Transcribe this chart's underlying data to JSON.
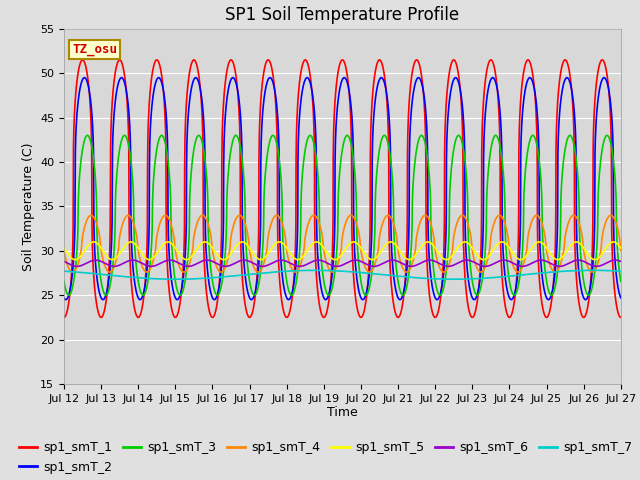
{
  "title": "SP1 Soil Temperature Profile",
  "xlabel": "Time",
  "ylabel": "Soil Temperature (C)",
  "ylim": [
    15,
    55
  ],
  "x_tick_labels": [
    "Jul 12",
    "Jul 13",
    "Jul 14",
    "Jul 15",
    "Jul 16",
    "Jul 17",
    "Jul 18",
    "Jul 19",
    "Jul 20",
    "Jul 21",
    "Jul 22",
    "Jul 23",
    "Jul 24",
    "Jul 25",
    "Jul 26",
    "Jul 27"
  ],
  "series": [
    {
      "name": "sp1_smT_1",
      "color": "#FF0000",
      "mean": 37.0,
      "amplitude": 14.5,
      "phase_shift": 0.25,
      "period": 1.0,
      "sharpness": 3.0
    },
    {
      "name": "sp1_smT_2",
      "color": "#0000FF",
      "mean": 37.0,
      "amplitude": 12.5,
      "phase_shift": 0.3,
      "period": 1.0,
      "sharpness": 3.0
    },
    {
      "name": "sp1_smT_3",
      "color": "#00CC00",
      "mean": 34.0,
      "amplitude": 9.0,
      "phase_shift": 0.38,
      "period": 1.0,
      "sharpness": 2.0
    },
    {
      "name": "sp1_smT_4",
      "color": "#FF8800",
      "mean": 30.8,
      "amplitude": 3.2,
      "phase_shift": 0.48,
      "period": 1.0,
      "sharpness": 1.5
    },
    {
      "name": "sp1_smT_5",
      "color": "#FFFF00",
      "mean": 30.0,
      "amplitude": 1.0,
      "phase_shift": 0.55,
      "period": 1.0,
      "sharpness": 1.0
    },
    {
      "name": "sp1_smT_6",
      "color": "#9900CC",
      "mean": 28.6,
      "amplitude": 0.35,
      "phase_shift": 0.6,
      "period": 1.0,
      "sharpness": 1.0
    },
    {
      "name": "sp1_smT_7",
      "color": "#00CCCC",
      "mean": 27.3,
      "amplitude": 0.5,
      "phase_shift": 0.65,
      "period": 7.5,
      "sharpness": 1.0
    }
  ],
  "annotation_text": "TZ_osu",
  "annotation_color": "#CC0000",
  "annotation_bg": "#FFFFCC",
  "annotation_border": "#AA8800",
  "background_color": "#E0E0E0",
  "plot_bg_color": "#D8D8D8",
  "grid_color": "#FFFFFF",
  "title_fontsize": 12,
  "axis_label_fontsize": 9,
  "tick_fontsize": 8,
  "legend_fontsize": 9
}
